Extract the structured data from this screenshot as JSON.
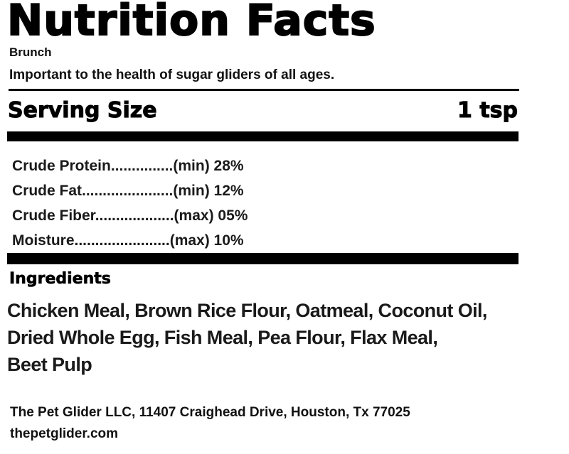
{
  "label": {
    "title": "Nutrition Facts",
    "product_name": "Brunch",
    "tagline": "Important to the health of sugar gliders of all ages.",
    "serving": {
      "label": "Serving Size",
      "value": "1 tsp"
    },
    "guaranteed_analysis": [
      {
        "text": "Crude Protein...............(min) 28%",
        "nutrient": "Crude Protein",
        "qualifier": "min",
        "value": "28%"
      },
      {
        "text": "Crude Fat......................(min) 12%",
        "nutrient": "Crude Fat",
        "qualifier": "min",
        "value": "12%"
      },
      {
        "text": "Crude Fiber...................(max) 05%",
        "nutrient": "Crude Fiber",
        "qualifier": "max",
        "value": "05%"
      },
      {
        "text": "Moisture.......................(max) 10%",
        "nutrient": "Moisture",
        "qualifier": "max",
        "value": "10%"
      }
    ],
    "ingredients": {
      "heading": "Ingredients",
      "lines": [
        "Chicken Meal, Brown Rice Flour, Oatmeal, Coconut Oil,",
        "Dried Whole Egg, Fish Meal, Pea Flour, Flax Meal,",
        "Beet Pulp"
      ]
    },
    "footer": {
      "company": "The Pet Glider LLC, 11407 Craighead Drive, Houston, Tx 77025",
      "website": "thepetglider.com"
    }
  },
  "colors": {
    "text": "#111111",
    "rule": "#000000",
    "background": "#ffffff"
  }
}
